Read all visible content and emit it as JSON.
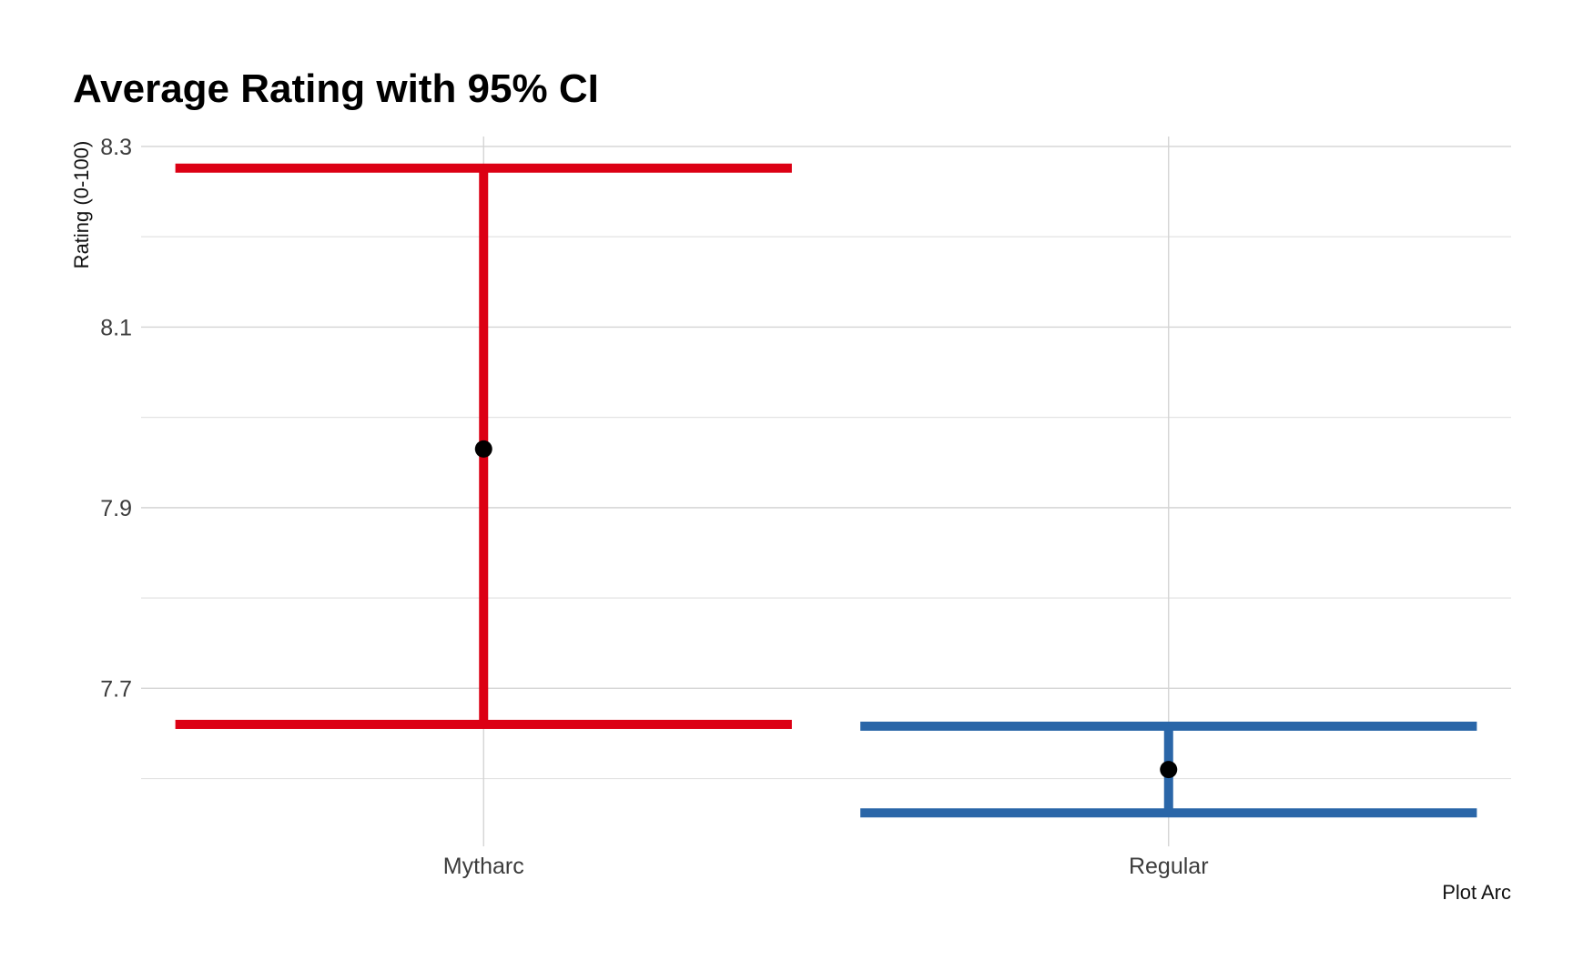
{
  "chart_data": {
    "type": "errorbar",
    "title": "Average Rating with 95% CI",
    "xlabel": "Plot Arc",
    "ylabel": "Rating (0-100)",
    "categories": [
      "Mytharc",
      "Regular"
    ],
    "means": [
      7.965,
      7.61
    ],
    "lower": [
      7.66,
      7.562
    ],
    "upper": [
      8.276,
      7.658
    ],
    "colors": [
      "#dc0014",
      "#2a66a8"
    ],
    "point_color": "#000000",
    "yticks": [
      7.7,
      7.9,
      8.1,
      8.3
    ],
    "ytick_labels": [
      "7.7",
      "7.9",
      "8.1",
      "8.3"
    ],
    "ylim": [
      7.525,
      8.311
    ],
    "grid": true,
    "legend": "none"
  }
}
